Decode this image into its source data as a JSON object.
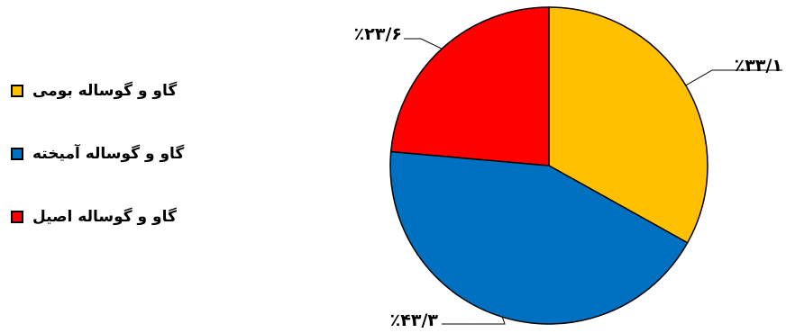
{
  "chart_data": {
    "type": "pie",
    "categories": [
      "گاو و گوساله بومی",
      "گاو و گوساله آمیخته",
      "گاو و گوساله اصیل"
    ],
    "values": [
      33.1,
      43.3,
      23.6
    ],
    "data_labels": [
      "٪۳۳/۱",
      "٪۴۳/۳",
      "٪۲۳/۶"
    ],
    "colors": [
      "#FFC000",
      "#0070C0",
      "#FF0000"
    ],
    "start_angle_deg": 0,
    "direction": "clockwise",
    "legend_position": "left"
  }
}
